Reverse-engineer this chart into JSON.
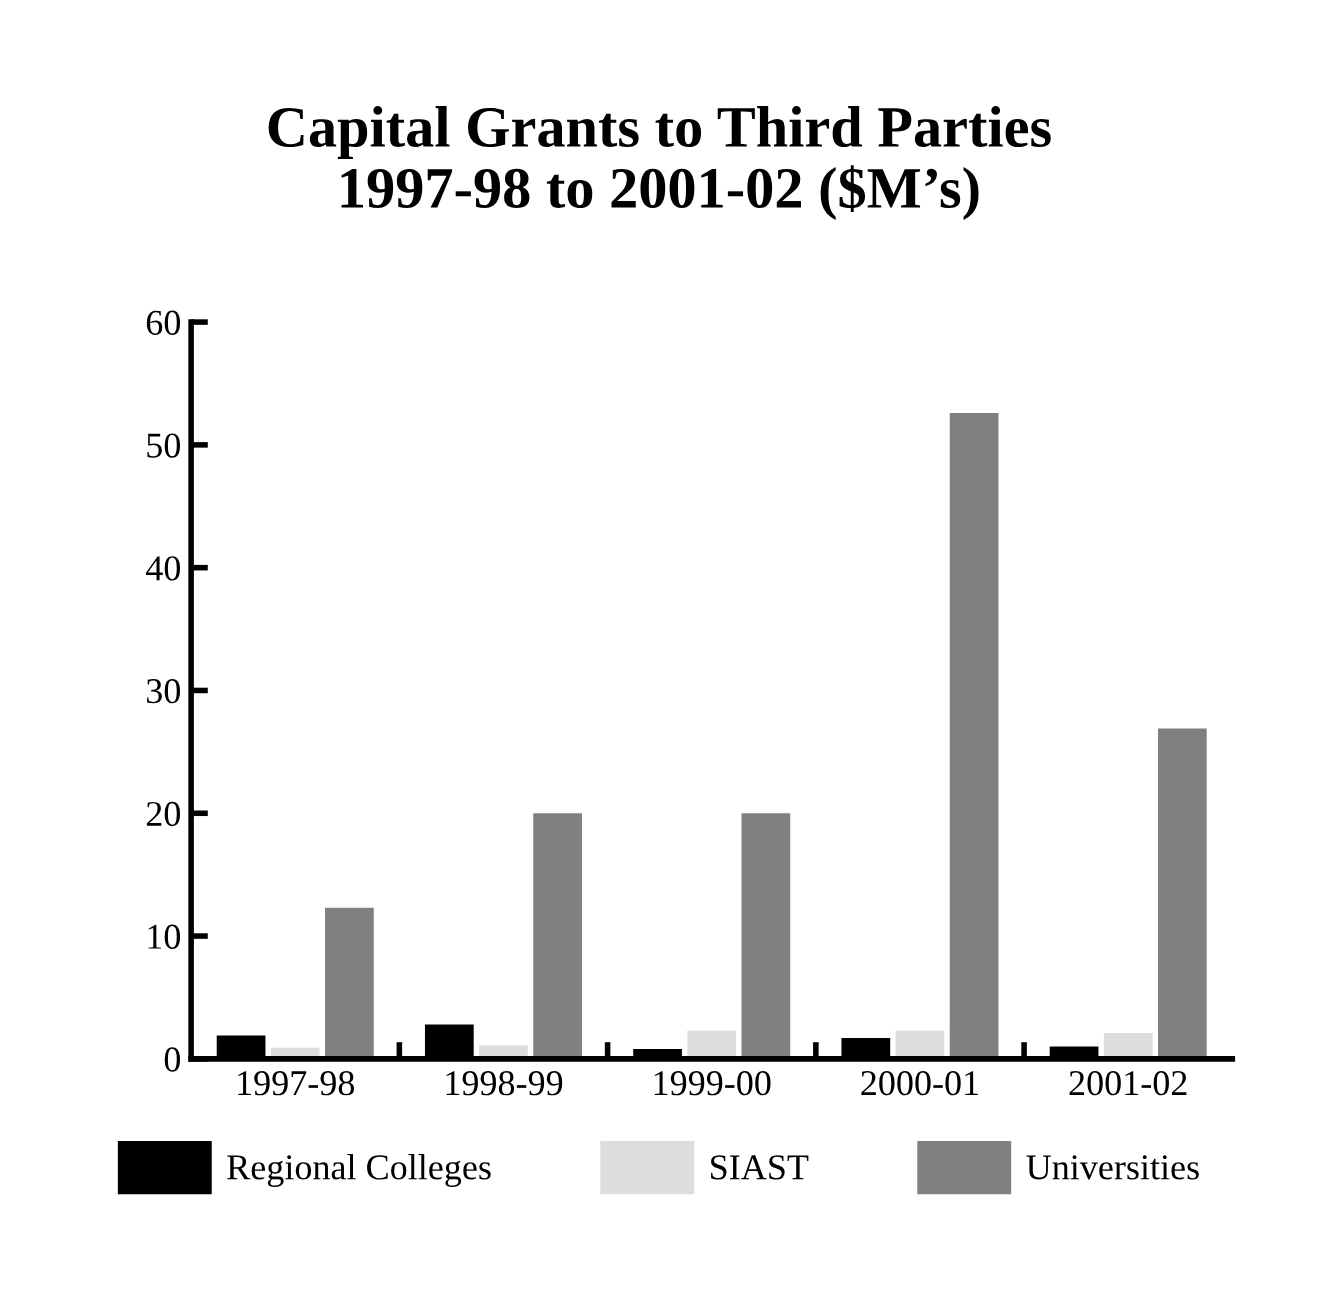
{
  "chart_data": {
    "type": "bar",
    "title": "Capital Grants to Third Parties\n1997-98 to 2001-02 ($M’s)",
    "categories": [
      "1997-98",
      "1998-99",
      "1999-00",
      "2000-01",
      "2001-02"
    ],
    "series": [
      {
        "name": "Regional Colleges",
        "color": "#000000",
        "values": [
          1.9,
          2.8,
          0.8,
          1.7,
          1.0
        ]
      },
      {
        "name": "SIAST",
        "color": "#dddddd",
        "values": [
          0.9,
          1.1,
          2.3,
          2.3,
          2.1
        ]
      },
      {
        "name": "Universities",
        "color": "#808080",
        "values": [
          12.3,
          20,
          20,
          52.6,
          26.9
        ]
      }
    ],
    "ylim": [
      0,
      60
    ],
    "yticks": [
      0,
      10,
      20,
      30,
      40,
      50,
      60
    ],
    "grid": false,
    "legend": "bottom"
  }
}
